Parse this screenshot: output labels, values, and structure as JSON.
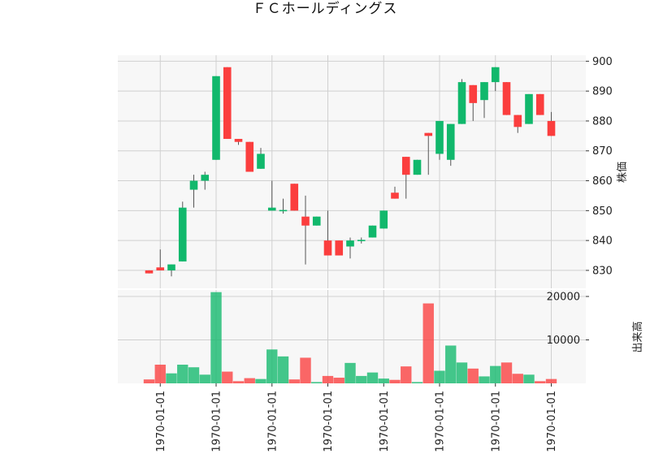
{
  "chart_data": {
    "type": "candlestick",
    "title": "ＦＣホールディングス",
    "price_ylabel": "株価",
    "volume_ylabel": "出来高",
    "up_color": "#11b86c",
    "down_color": "#fb3e3e",
    "price_ylim": [
      824,
      902
    ],
    "volume_ylim": [
      0,
      21500
    ],
    "price_ticks": [
      830,
      840,
      850,
      860,
      870,
      880,
      890,
      900
    ],
    "volume_ticks": [
      10000,
      20000
    ],
    "x_tick_indices": [
      1,
      6,
      11,
      16,
      21,
      26,
      31,
      36
    ],
    "x_tick_labels": [
      "1970-01-01",
      "1970-01-01",
      "1970-01-01",
      "1970-01-01",
      "1970-01-01",
      "1970-01-01",
      "1970-01-01",
      "1970-01-01"
    ],
    "candles": [
      {
        "open": 830,
        "high": 830,
        "low": 829,
        "close": 829,
        "volume": 900
      },
      {
        "open": 831,
        "high": 837,
        "low": 830,
        "close": 830,
        "volume": 4300
      },
      {
        "open": 830,
        "high": 832,
        "low": 828,
        "close": 832,
        "volume": 2300
      },
      {
        "open": 833,
        "high": 853,
        "low": 833,
        "close": 851,
        "volume": 4300
      },
      {
        "open": 857,
        "high": 862,
        "low": 851,
        "close": 860,
        "volume": 3700
      },
      {
        "open": 860,
        "high": 863,
        "low": 857,
        "close": 862,
        "volume": 2000
      },
      {
        "open": 867,
        "high": 895,
        "low": 867,
        "close": 895,
        "volume": 21000
      },
      {
        "open": 898,
        "high": 898,
        "low": 874,
        "close": 874,
        "volume": 2700
      },
      {
        "open": 874,
        "high": 874,
        "low": 872,
        "close": 873,
        "volume": 500
      },
      {
        "open": 873,
        "high": 873,
        "low": 863,
        "close": 863,
        "volume": 1200
      },
      {
        "open": 864,
        "high": 871,
        "low": 864,
        "close": 869,
        "volume": 1000
      },
      {
        "open": 850,
        "high": 860,
        "low": 850,
        "close": 851,
        "volume": 7800
      },
      {
        "open": 850,
        "high": 854,
        "low": 849,
        "close": 850,
        "volume": 6200
      },
      {
        "open": 859,
        "high": 859,
        "low": 850,
        "close": 850,
        "volume": 900
      },
      {
        "open": 848,
        "high": 855,
        "low": 832,
        "close": 845,
        "volume": 5900
      },
      {
        "open": 845,
        "high": 848,
        "low": 845,
        "close": 848,
        "volume": 300
      },
      {
        "open": 840,
        "high": 850,
        "low": 835,
        "close": 835,
        "volume": 1700
      },
      {
        "open": 840,
        "high": 840,
        "low": 835,
        "close": 835,
        "volume": 1300
      },
      {
        "open": 838,
        "high": 841,
        "low": 834,
        "close": 840,
        "volume": 4700
      },
      {
        "open": 840,
        "high": 841,
        "low": 839,
        "close": 840,
        "volume": 1700
      },
      {
        "open": 841,
        "high": 845,
        "low": 841,
        "close": 845,
        "volume": 2500
      },
      {
        "open": 844,
        "high": 850,
        "low": 844,
        "close": 850,
        "volume": 1100
      },
      {
        "open": 856,
        "high": 858,
        "low": 854,
        "close": 854,
        "volume": 800
      },
      {
        "open": 868,
        "high": 868,
        "low": 854,
        "close": 862,
        "volume": 3900
      },
      {
        "open": 862,
        "high": 867,
        "low": 862,
        "close": 867,
        "volume": 300
      },
      {
        "open": 876,
        "high": 876,
        "low": 862,
        "close": 875,
        "volume": 18400
      },
      {
        "open": 869,
        "high": 880,
        "low": 867,
        "close": 880,
        "volume": 2900
      },
      {
        "open": 867,
        "high": 879,
        "low": 865,
        "close": 879,
        "volume": 8700
      },
      {
        "open": 879,
        "high": 894,
        "low": 879,
        "close": 893,
        "volume": 4800
      },
      {
        "open": 892,
        "high": 892,
        "low": 880,
        "close": 886,
        "volume": 3400
      },
      {
        "open": 887,
        "high": 893,
        "low": 881,
        "close": 893,
        "volume": 1600
      },
      {
        "open": 893,
        "high": 898,
        "low": 890,
        "close": 898,
        "volume": 4000
      },
      {
        "open": 893,
        "high": 893,
        "low": 882,
        "close": 882,
        "volume": 4800
      },
      {
        "open": 882,
        "high": 882,
        "low": 876,
        "close": 878,
        "volume": 2200
      },
      {
        "open": 879,
        "high": 889,
        "low": 879,
        "close": 889,
        "volume": 2000
      },
      {
        "open": 889,
        "high": 889,
        "low": 882,
        "close": 882,
        "volume": 500
      },
      {
        "open": 880,
        "high": 883,
        "low": 875,
        "close": 875,
        "volume": 1000
      }
    ]
  }
}
